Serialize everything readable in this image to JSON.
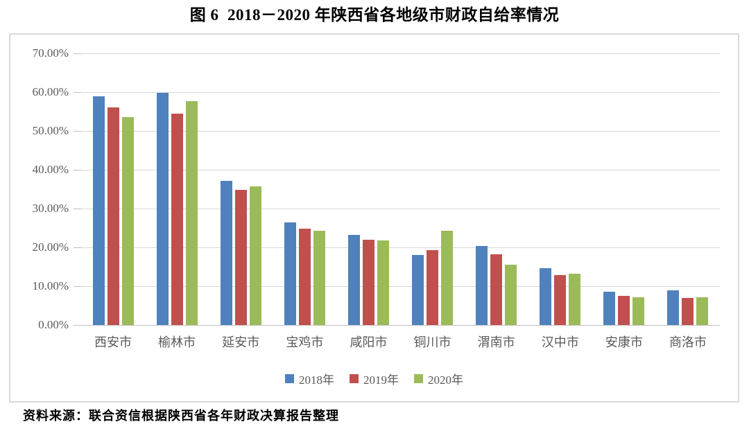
{
  "title": "图 6  2018－2020 年陕西省各地级市财政自给率情况",
  "source": "资料来源：联合资信根据陕西省各年财政决算报告整理",
  "colors": {
    "series_2018": "#4F81BD",
    "series_2019": "#C0504D",
    "series_2020": "#9BBB59",
    "gridline": "#D8D8D8",
    "axis_text": "#595959",
    "chart_border": "#D9D9D9"
  },
  "chart_data": {
    "type": "bar",
    "title": "图 6  2018－2020 年陕西省各地级市财政自给率情况",
    "xlabel": "",
    "ylabel": "",
    "ylim": [
      0,
      70
    ],
    "ytick_step": 10,
    "ytick_labels": [
      "0.00%",
      "10.00%",
      "20.00%",
      "30.00%",
      "40.00%",
      "50.00%",
      "60.00%",
      "70.00%"
    ],
    "grid": true,
    "legend_position": "bottom",
    "categories": [
      "西安市",
      "榆林市",
      "延安市",
      "宝鸡市",
      "咸阳市",
      "铜川市",
      "渭南市",
      "汉中市",
      "安康市",
      "商洛市"
    ],
    "series": [
      {
        "name": "2018年",
        "color": "#4F81BD",
        "values": [
          59.0,
          59.8,
          37.2,
          26.4,
          23.2,
          18.0,
          20.3,
          14.6,
          8.6,
          8.9
        ]
      },
      {
        "name": "2019年",
        "color": "#C0504D",
        "values": [
          56.0,
          54.4,
          34.8,
          24.9,
          21.9,
          19.3,
          18.3,
          12.8,
          7.5,
          6.9
        ]
      },
      {
        "name": "2020年",
        "color": "#9BBB59",
        "values": [
          53.5,
          57.6,
          35.7,
          24.3,
          21.7,
          24.2,
          15.6,
          13.2,
          7.1,
          7.1
        ]
      }
    ]
  }
}
